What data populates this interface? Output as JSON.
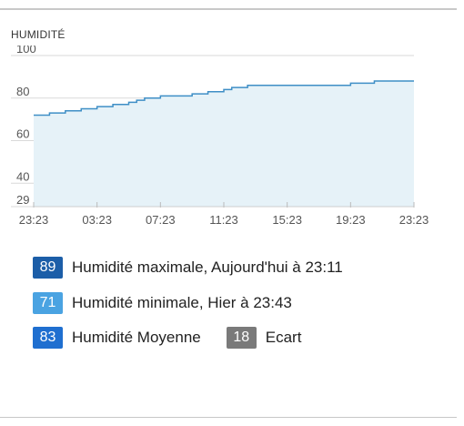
{
  "section": {
    "title": "HUMIDITÉ"
  },
  "colors": {
    "line": "#3f8fc6",
    "area": "#e6f2f8",
    "grid": "#d9d9d9",
    "max_badge": "#1c5ea8",
    "min_badge": "#4aa3e2",
    "avg_badge": "#1f6fd0",
    "gap_badge": "#7a7a7a"
  },
  "chart_data": {
    "type": "area",
    "title": "",
    "xlabel": "",
    "ylabel": "",
    "ylim": [
      29,
      100
    ],
    "yticks": [
      "100",
      "80",
      "60",
      "40",
      "29"
    ],
    "ytick_values": [
      100,
      80,
      60,
      40,
      29
    ],
    "xticks": [
      "23:23",
      "03:23",
      "07:23",
      "11:23",
      "15:23",
      "19:23",
      "23:23"
    ],
    "xtick_values": [
      0,
      4,
      8,
      12,
      16,
      20,
      24
    ],
    "grid": true,
    "series": [
      {
        "x": [
          0,
          0.5,
          1,
          1.5,
          2,
          2.5,
          3,
          3.5,
          4,
          4.5,
          5,
          5.5,
          6,
          6.5,
          7,
          7.5,
          8,
          8.5,
          9,
          9.5,
          10,
          10.5,
          11,
          11.5,
          12,
          12.5,
          13,
          13.5,
          14,
          14.5,
          15,
          15.5,
          16,
          16.5,
          17,
          17.5,
          18,
          18.5,
          19,
          19.5,
          20,
          20.5,
          21,
          21.5,
          22,
          22.5,
          23,
          23.5
        ],
        "y": [
          72,
          72,
          73,
          73,
          74,
          74,
          75,
          75,
          76,
          76,
          77,
          77,
          78,
          79,
          80,
          80,
          81,
          81,
          81,
          81,
          82,
          82,
          83,
          83,
          84,
          85,
          85,
          86,
          86,
          86,
          86,
          86,
          86,
          86,
          86,
          86,
          86,
          86,
          86,
          86,
          87,
          87,
          87,
          88,
          88,
          88,
          88,
          88
        ]
      }
    ]
  },
  "stats": {
    "max": {
      "value": "89",
      "label": "Humidité maximale, Aujourd'hui à 23:11"
    },
    "min": {
      "value": "71",
      "label": "Humidité minimale, Hier à 23:43"
    },
    "avg": {
      "value": "83",
      "label": "Humidité Moyenne"
    },
    "gap": {
      "value": "18",
      "label": "Ecart"
    }
  }
}
